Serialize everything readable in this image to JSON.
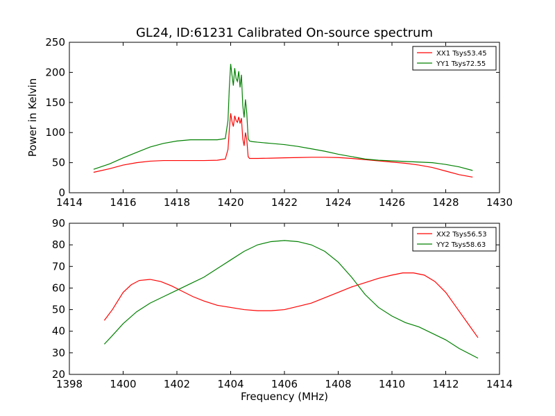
{
  "figure": {
    "title": "GL24, ID:61231 Calibrated On-source spectrum"
  },
  "chart_data": [
    {
      "type": "line",
      "title": "GL24, ID:61231 Calibrated On-source spectrum",
      "xlabel": "",
      "ylabel": "Power in Kelvin",
      "xlim": [
        1414,
        1430
      ],
      "ylim": [
        0,
        250
      ],
      "xticks": [
        1414,
        1416,
        1418,
        1420,
        1422,
        1424,
        1426,
        1428,
        1430
      ],
      "yticks": [
        0,
        50,
        100,
        150,
        200,
        250
      ],
      "grid": false,
      "legend_position": "top-right",
      "series": [
        {
          "name": "XX1 Tsys53.45",
          "color": "#ff0000",
          "x": [
            1414.9,
            1415.5,
            1416,
            1416.5,
            1417,
            1417.5,
            1418,
            1418.5,
            1419,
            1419.5,
            1419.8,
            1419.9,
            1419.95,
            1420.0,
            1420.05,
            1420.1,
            1420.15,
            1420.2,
            1420.25,
            1420.3,
            1420.35,
            1420.4,
            1420.45,
            1420.5,
            1420.55,
            1420.6,
            1420.65,
            1420.7,
            1420.8,
            1421,
            1421.5,
            1422,
            1422.5,
            1423,
            1423.5,
            1424,
            1424.5,
            1425,
            1425.5,
            1426,
            1426.5,
            1427,
            1427.5,
            1428,
            1428.5,
            1429
          ],
          "values": [
            34,
            40,
            46,
            50,
            52.5,
            53.5,
            53.5,
            53.5,
            53.5,
            54,
            56,
            72,
            105,
            132,
            118,
            110,
            128,
            120,
            117,
            126,
            115,
            124,
            90,
            78,
            100,
            88,
            60,
            57,
            57,
            57,
            57.5,
            58,
            58.5,
            59,
            59,
            58.5,
            57,
            55,
            53,
            51,
            49,
            46,
            42,
            36,
            30,
            26
          ]
        },
        {
          "name": "YY1 Tsys72.55",
          "color": "#008000",
          "x": [
            1414.9,
            1415.5,
            1416,
            1416.5,
            1417,
            1417.5,
            1418,
            1418.5,
            1419,
            1419.5,
            1419.8,
            1419.9,
            1419.95,
            1420.0,
            1420.05,
            1420.1,
            1420.15,
            1420.2,
            1420.25,
            1420.3,
            1420.35,
            1420.4,
            1420.45,
            1420.5,
            1420.55,
            1420.6,
            1420.65,
            1420.7,
            1420.8,
            1421,
            1421.5,
            1422,
            1422.5,
            1423,
            1423.5,
            1424,
            1424.5,
            1425,
            1425.5,
            1426,
            1426.5,
            1427,
            1427.5,
            1428,
            1428.5,
            1429
          ],
          "values": [
            39,
            48,
            58,
            67,
            76,
            82,
            86,
            88,
            88,
            88,
            90,
            120,
            175,
            214,
            195,
            178,
            207,
            190,
            185,
            202,
            175,
            196,
            145,
            125,
            155,
            132,
            90,
            86,
            85,
            84,
            82,
            80,
            77,
            73,
            69,
            64,
            60,
            56,
            54,
            53,
            52,
            51,
            50,
            47,
            43,
            37
          ]
        }
      ]
    },
    {
      "type": "line",
      "title": "",
      "xlabel": "Frequency (MHz)",
      "ylabel": "",
      "xlim": [
        1398,
        1414
      ],
      "ylim": [
        20,
        90
      ],
      "xticks": [
        1398,
        1400,
        1402,
        1404,
        1406,
        1408,
        1410,
        1412,
        1414
      ],
      "yticks": [
        20,
        30,
        40,
        50,
        60,
        70,
        80,
        90
      ],
      "grid": false,
      "legend_position": "top-right",
      "series": [
        {
          "name": "XX2 Tsys56.53",
          "color": "#ff0000",
          "x": [
            1399.3,
            1399.6,
            1400,
            1400.3,
            1400.6,
            1401,
            1401.4,
            1401.8,
            1402.2,
            1402.6,
            1403,
            1403.5,
            1404,
            1404.5,
            1405,
            1405.5,
            1406,
            1406.5,
            1407,
            1407.5,
            1408,
            1408.5,
            1409,
            1409.5,
            1410,
            1410.4,
            1410.8,
            1411.2,
            1411.6,
            1412,
            1412.4,
            1412.8,
            1413.2
          ],
          "values": [
            45,
            50,
            58,
            61.5,
            63.5,
            64,
            63,
            61,
            58.5,
            56,
            54,
            52,
            51,
            50,
            49.5,
            49.5,
            50,
            51.5,
            53,
            55.5,
            58,
            60.5,
            62.5,
            64.5,
            66,
            67,
            67,
            66,
            63,
            58,
            51,
            44,
            37
          ]
        },
        {
          "name": "YY2 Tsys58.63",
          "color": "#008000",
          "x": [
            1399.3,
            1399.6,
            1400,
            1400.5,
            1401,
            1401.5,
            1402,
            1402.5,
            1403,
            1403.5,
            1404,
            1404.5,
            1405,
            1405.5,
            1406,
            1406.5,
            1407,
            1407.5,
            1408,
            1408.5,
            1409,
            1409.5,
            1410,
            1410.5,
            1411,
            1411.5,
            1412,
            1412.5,
            1413.2
          ],
          "values": [
            34,
            38,
            43.5,
            49,
            53,
            56,
            59,
            62,
            65,
            69,
            73,
            77,
            80,
            81.5,
            82,
            81.5,
            80,
            77,
            72,
            65,
            57,
            51,
            47,
            44,
            42,
            39,
            36,
            32,
            27.5
          ]
        }
      ]
    }
  ]
}
